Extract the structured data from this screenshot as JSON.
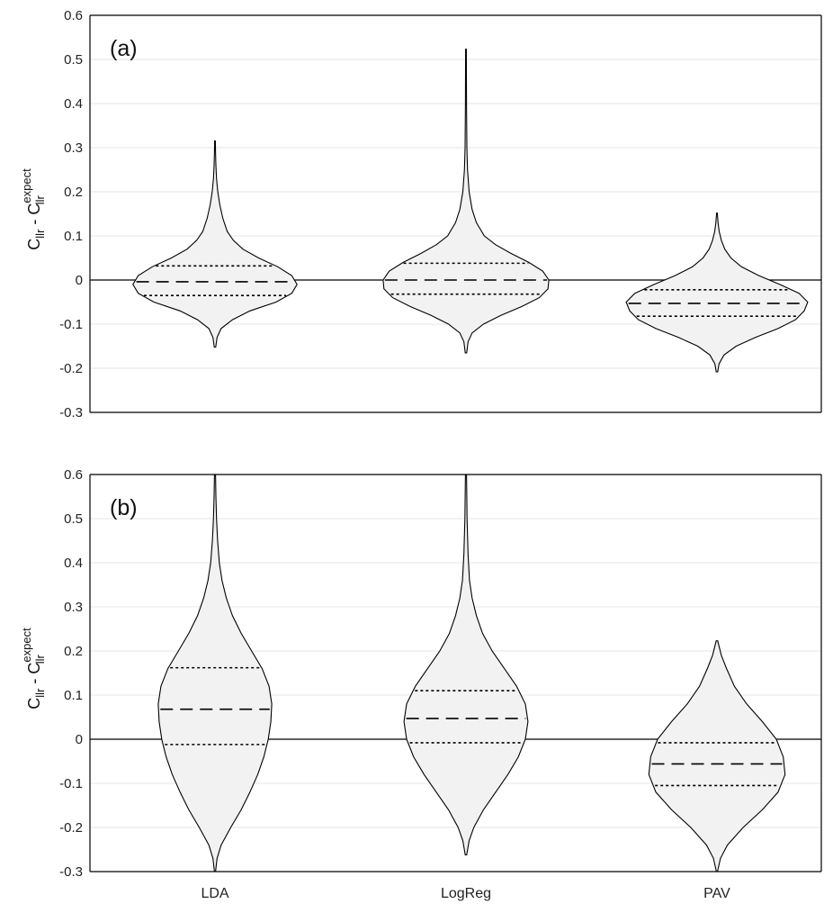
{
  "chart_data": [
    {
      "type": "violin",
      "panel_label": "(a)",
      "ylabel": {
        "base": "C",
        "sub": "llr",
        "minus": "-",
        "base2": "C",
        "sub2": "llr",
        "sup2": "expect"
      },
      "categories": [
        "LDA",
        "LogReg",
        "PAV"
      ],
      "ylim": [
        -0.3,
        0.6
      ],
      "yticks": [
        "0.6",
        "0.5",
        "0.4",
        "0.3",
        "0.2",
        "0.1",
        "0",
        "-0.1",
        "-0.2",
        "-0.3"
      ],
      "grid": true,
      "violins": [
        {
          "category": "LDA",
          "min": -0.152,
          "max": 0.315,
          "median": -0.004,
          "q1": -0.035,
          "q3": 0.032,
          "profile": [
            [
              -0.152,
              0.004
            ],
            [
              -0.13,
              0.012
            ],
            [
              -0.11,
              0.035
            ],
            [
              -0.09,
              0.1
            ],
            [
              -0.07,
              0.2
            ],
            [
              -0.05,
              0.35
            ],
            [
              -0.03,
              0.44
            ],
            [
              -0.01,
              0.47
            ],
            [
              0.01,
              0.44
            ],
            [
              0.03,
              0.36
            ],
            [
              0.05,
              0.25
            ],
            [
              0.07,
              0.16
            ],
            [
              0.09,
              0.105
            ],
            [
              0.11,
              0.07
            ],
            [
              0.14,
              0.045
            ],
            [
              0.17,
              0.028
            ],
            [
              0.2,
              0.016
            ],
            [
              0.23,
              0.009
            ],
            [
              0.26,
              0.005
            ],
            [
              0.29,
              0.003
            ],
            [
              0.315,
              0.002
            ]
          ]
        },
        {
          "category": "LogReg",
          "min": -0.165,
          "max": 0.523,
          "median": 0.0,
          "q1": -0.032,
          "q3": 0.038,
          "profile": [
            [
              -0.165,
              0.004
            ],
            [
              -0.14,
              0.012
            ],
            [
              -0.12,
              0.035
            ],
            [
              -0.1,
              0.1
            ],
            [
              -0.08,
              0.2
            ],
            [
              -0.06,
              0.32
            ],
            [
              -0.04,
              0.42
            ],
            [
              -0.02,
              0.47
            ],
            [
              0.0,
              0.475
            ],
            [
              0.02,
              0.44
            ],
            [
              0.04,
              0.36
            ],
            [
              0.06,
              0.26
            ],
            [
              0.08,
              0.17
            ],
            [
              0.1,
              0.105
            ],
            [
              0.13,
              0.06
            ],
            [
              0.16,
              0.035
            ],
            [
              0.2,
              0.018
            ],
            [
              0.25,
              0.009
            ],
            [
              0.3,
              0.005
            ],
            [
              0.4,
              0.003
            ],
            [
              0.523,
              0.002
            ]
          ]
        },
        {
          "category": "PAV",
          "min": -0.208,
          "max": 0.152,
          "median": -0.053,
          "q1": -0.082,
          "q3": -0.022,
          "profile": [
            [
              -0.208,
              0.004
            ],
            [
              -0.19,
              0.012
            ],
            [
              -0.17,
              0.04
            ],
            [
              -0.15,
              0.11
            ],
            [
              -0.13,
              0.22
            ],
            [
              -0.11,
              0.35
            ],
            [
              -0.09,
              0.45
            ],
            [
              -0.07,
              0.5
            ],
            [
              -0.05,
              0.52
            ],
            [
              -0.03,
              0.47
            ],
            [
              -0.01,
              0.36
            ],
            [
              0.01,
              0.24
            ],
            [
              0.03,
              0.14
            ],
            [
              0.05,
              0.08
            ],
            [
              0.07,
              0.045
            ],
            [
              0.09,
              0.025
            ],
            [
              0.11,
              0.013
            ],
            [
              0.13,
              0.006
            ],
            [
              0.152,
              0.002
            ]
          ]
        }
      ]
    },
    {
      "type": "violin",
      "panel_label": "(b)",
      "ylabel": {
        "base": "C",
        "sub": "llr",
        "minus": "-",
        "base2": "C",
        "sub2": "llr",
        "sup2": "expect"
      },
      "categories": [
        "LDA",
        "LogReg",
        "PAV"
      ],
      "ylim": [
        -0.3,
        0.6
      ],
      "yticks": [
        "0.6",
        "0.5",
        "0.4",
        "0.3",
        "0.2",
        "0.1",
        "0",
        "-0.1",
        "-0.2",
        "-0.3"
      ],
      "grid": true,
      "violins": [
        {
          "category": "LDA",
          "min": -0.3,
          "max": 0.6,
          "median": 0.068,
          "q1": -0.012,
          "q3": 0.162,
          "profile": [
            [
              -0.3,
              0.003
            ],
            [
              -0.27,
              0.012
            ],
            [
              -0.24,
              0.035
            ],
            [
              -0.2,
              0.09
            ],
            [
              -0.16,
              0.15
            ],
            [
              -0.12,
              0.2
            ],
            [
              -0.08,
              0.245
            ],
            [
              -0.04,
              0.28
            ],
            [
              0.0,
              0.305
            ],
            [
              0.04,
              0.32
            ],
            [
              0.08,
              0.325
            ],
            [
              0.12,
              0.31
            ],
            [
              0.16,
              0.27
            ],
            [
              0.2,
              0.21
            ],
            [
              0.24,
              0.15
            ],
            [
              0.28,
              0.1
            ],
            [
              0.32,
              0.065
            ],
            [
              0.36,
              0.04
            ],
            [
              0.4,
              0.025
            ],
            [
              0.45,
              0.015
            ],
            [
              0.5,
              0.009
            ],
            [
              0.55,
              0.005
            ],
            [
              0.6,
              0.003
            ]
          ]
        },
        {
          "category": "LogReg",
          "min": -0.262,
          "max": 0.6,
          "median": 0.047,
          "q1": -0.008,
          "q3": 0.11,
          "profile": [
            [
              -0.262,
              0.004
            ],
            [
              -0.23,
              0.018
            ],
            [
              -0.2,
              0.045
            ],
            [
              -0.16,
              0.1
            ],
            [
              -0.12,
              0.17
            ],
            [
              -0.08,
              0.24
            ],
            [
              -0.04,
              0.3
            ],
            [
              0.0,
              0.34
            ],
            [
              0.04,
              0.355
            ],
            [
              0.08,
              0.34
            ],
            [
              0.12,
              0.29
            ],
            [
              0.16,
              0.22
            ],
            [
              0.2,
              0.15
            ],
            [
              0.24,
              0.095
            ],
            [
              0.28,
              0.06
            ],
            [
              0.32,
              0.035
            ],
            [
              0.36,
              0.02
            ],
            [
              0.42,
              0.012
            ],
            [
              0.5,
              0.006
            ],
            [
              0.6,
              0.003
            ]
          ]
        },
        {
          "category": "PAV",
          "min": -0.3,
          "max": 0.223,
          "median": -0.056,
          "q1": -0.105,
          "q3": -0.008,
          "profile": [
            [
              -0.3,
              0.003
            ],
            [
              -0.27,
              0.02
            ],
            [
              -0.24,
              0.06
            ],
            [
              -0.2,
              0.15
            ],
            [
              -0.16,
              0.26
            ],
            [
              -0.12,
              0.35
            ],
            [
              -0.08,
              0.39
            ],
            [
              -0.04,
              0.38
            ],
            [
              0.0,
              0.34
            ],
            [
              0.04,
              0.26
            ],
            [
              0.08,
              0.17
            ],
            [
              0.12,
              0.1
            ],
            [
              0.16,
              0.055
            ],
            [
              0.19,
              0.025
            ],
            [
              0.223,
              0.004
            ]
          ]
        }
      ]
    }
  ]
}
